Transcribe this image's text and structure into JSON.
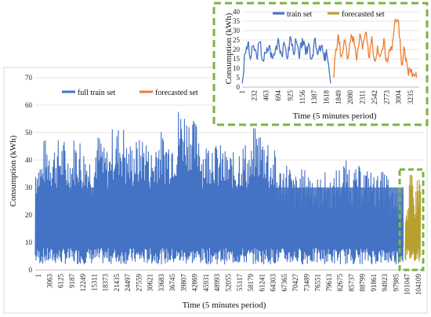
{
  "colors": {
    "train": "#4472C4",
    "forecast_main": "#B8A030",
    "forecast_inset": "#ED7D31",
    "inset_border": "#7DB342"
  },
  "chart_data": [
    {
      "type": "line",
      "title": "",
      "xlabel": "Time (5 minutes period)",
      "ylabel": "Consumption (kWh)",
      "ylim": [
        0,
        70
      ],
      "yticks": [
        0,
        10,
        20,
        30,
        40,
        50,
        60,
        70
      ],
      "xticks": [
        "1",
        "3063",
        "6125",
        "9187",
        "12249",
        "15311",
        "18373",
        "21435",
        "24497",
        "27559",
        "30621",
        "33683",
        "36745",
        "39807",
        "42869",
        "45931",
        "48993",
        "52055",
        "55117",
        "58179",
        "61241",
        "64303",
        "67365",
        "70427",
        "73489",
        "76551",
        "79613",
        "82675",
        "85737",
        "88799",
        "91861",
        "94923",
        "97985",
        "101047",
        "104109"
      ],
      "legend_position": "top-left",
      "series": [
        {
          "name": "full train set",
          "peak_levels_kwh": [
            42,
            48,
            47,
            48,
            44,
            49,
            45,
            43,
            50,
            45,
            52,
            53,
            47,
            48,
            50,
            45,
            51,
            50,
            52,
            60,
            58,
            55,
            47,
            50,
            46,
            44,
            43,
            47,
            45,
            52,
            50,
            44,
            38,
            40,
            35,
            37,
            37,
            34,
            36,
            34,
            38,
            40,
            37,
            38,
            37,
            35,
            36,
            29,
            28
          ]
        },
        {
          "name": "forecasted set",
          "peak_levels_kwh": [
            27,
            35,
            30,
            36
          ]
        }
      ]
    },
    {
      "type": "line",
      "title": "",
      "xlabel": "Time (5 minutes period)",
      "ylabel": "Consumption (kWh)",
      "ylim": [
        0,
        40
      ],
      "yticks": [
        0,
        5,
        10,
        15,
        20,
        25,
        30,
        35,
        40
      ],
      "xticks": [
        "1",
        "232",
        "463",
        "694",
        "925",
        "1156",
        "1387",
        "1618",
        "1849",
        "2080",
        "2311",
        "2542",
        "2773",
        "3004",
        "3235"
      ],
      "legend_position": "top",
      "series": [
        {
          "name": "train set",
          "x": [
            1,
            60,
            110,
            160,
            220,
            280,
            340,
            400,
            463,
            520,
            580,
            640,
            694,
            760,
            820,
            880,
            925,
            980,
            1040,
            1100,
            1156,
            1220,
            1280,
            1340,
            1387,
            1450,
            1520,
            1580,
            1618,
            1700
          ],
          "y": [
            2,
            18,
            23,
            15,
            22,
            16,
            24,
            14,
            18,
            22,
            15,
            20,
            26,
            17,
            22,
            16,
            27,
            19,
            24,
            15,
            26,
            17,
            23,
            15,
            25,
            17,
            22,
            14,
            20,
            2
          ]
        },
        {
          "name": "forecasted set",
          "x": [
            1760,
            1800,
            1849,
            1900,
            1960,
            2020,
            2080,
            2140,
            2200,
            2260,
            2311,
            2370,
            2430,
            2490,
            2542,
            2600,
            2660,
            2720,
            2773,
            2830,
            2890,
            2950,
            3004,
            3060,
            3120,
            3180,
            3235,
            3300,
            3350
          ],
          "y": [
            5,
            20,
            28,
            16,
            25,
            15,
            24,
            27,
            14,
            28,
            20,
            29,
            16,
            27,
            14,
            22,
            17,
            26,
            15,
            20,
            24,
            36,
            35,
            12,
            20,
            9,
            8,
            6,
            5
          ]
        }
      ]
    }
  ]
}
